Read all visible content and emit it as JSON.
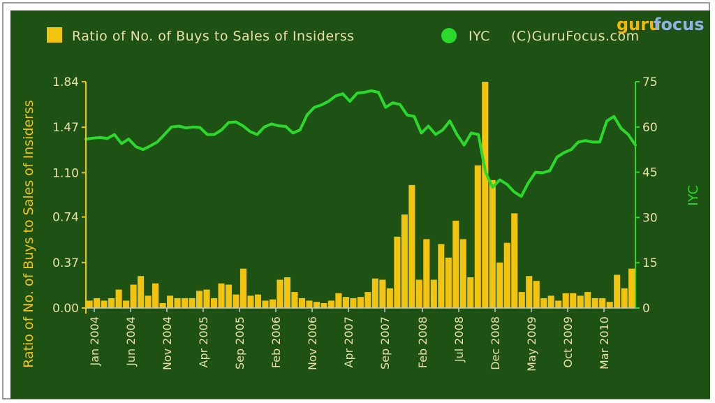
{
  "chart_data": {
    "type": "bar+line",
    "legend": {
      "bar_label": "Ratio of No. of Buys to Sales of Insiderss",
      "line_label": "IYC",
      "copyright": "(C)GuruFocus.com"
    },
    "logo": {
      "guru": "guru",
      "focus": "focus"
    },
    "y_left_title": "Ratio of No. of Buys to Sales of Insiderss",
    "y_right_title": "IYC",
    "y_left_ticks": [
      "0.00",
      "0.37",
      "0.74",
      "1.10",
      "1.47",
      "1.84"
    ],
    "y_right_ticks": [
      "0",
      "15",
      "30",
      "45",
      "60",
      "75"
    ],
    "y_left_range": [
      0,
      1.84
    ],
    "y_right_range": [
      0,
      75
    ],
    "x_ticks": [
      "Jan 2004",
      "Jun 2004",
      "Nov 2004",
      "Apr 2005",
      "Sep 2005",
      "Feb 2006",
      "Nov 2006",
      "Apr 2007",
      "Sep 2007",
      "Feb 2008",
      "Jul 2008",
      "Dec 2008",
      "May 2009",
      "Oct 2009",
      "Mar 2010"
    ],
    "colors": {
      "bar": "#f2c40f",
      "line": "#2bd92b",
      "background": "#1e5214",
      "left_axis": "#f2c40f",
      "right_axis": "#2bd92b"
    },
    "bars": [
      0.06,
      0.08,
      0.06,
      0.08,
      0.15,
      0.06,
      0.19,
      0.26,
      0.1,
      0.2,
      0.04,
      0.1,
      0.08,
      0.08,
      0.08,
      0.14,
      0.15,
      0.08,
      0.2,
      0.19,
      0.11,
      0.32,
      0.1,
      0.11,
      0.06,
      0.07,
      0.23,
      0.25,
      0.13,
      0.08,
      0.06,
      0.05,
      0.04,
      0.06,
      0.12,
      0.09,
      0.08,
      0.09,
      0.13,
      0.24,
      0.23,
      0.16,
      0.58,
      0.76,
      1.0,
      0.23,
      0.56,
      0.23,
      0.52,
      0.41,
      0.71,
      0.56,
      0.25,
      1.16,
      1.84,
      1.04,
      0.37,
      0.53,
      0.77,
      0.13,
      0.26,
      0.22,
      0.08,
      0.1,
      0.06,
      0.12,
      0.12,
      0.1,
      0.13,
      0.08,
      0.08,
      0.05,
      0.27,
      0.16,
      0.32
    ],
    "iyc": [
      56,
      56.3,
      56.5,
      56.2,
      57.5,
      54.5,
      56,
      53.5,
      52.5,
      53.7,
      55,
      57.5,
      60,
      60.3,
      59.7,
      60,
      59.8,
      57.5,
      57.5,
      59,
      61.5,
      61.7,
      60.4,
      58.5,
      57.5,
      60,
      61,
      60.4,
      60.2,
      58,
      59,
      64,
      66.5,
      67.3,
      68.5,
      70.3,
      71,
      68.5,
      71.2,
      71.5,
      72,
      71.5,
      66.5,
      68,
      67.5,
      64,
      63.5,
      58,
      60.3,
      57.5,
      59,
      62,
      57.5,
      54,
      58,
      57.5,
      45,
      40,
      42.5,
      41,
      38.5,
      37,
      41.5,
      45,
      44.8,
      45.5,
      50,
      51.5,
      52.5,
      55,
      55.5,
      55,
      55,
      62,
      63.5,
      59.5,
      57.5,
      54
    ]
  }
}
